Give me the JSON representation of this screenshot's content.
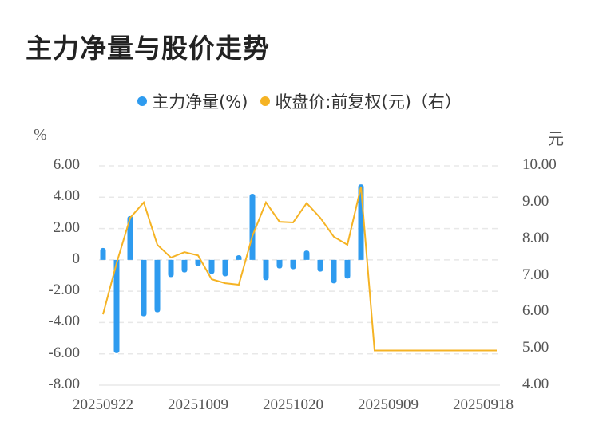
{
  "header": {
    "title": "主力净量与股价走势"
  },
  "legend": {
    "items": [
      {
        "label": "主力净量(%)",
        "color": "#2e9bef"
      },
      {
        "label": "收盘价:前复权(元)（右）",
        "color": "#f5b324"
      }
    ]
  },
  "axes": {
    "left_unit": "%",
    "right_unit": "元",
    "left_ticks": [
      "6.00",
      "4.00",
      "2.00",
      "0",
      "-2.00",
      "-4.00",
      "-6.00",
      "-8.00"
    ],
    "right_ticks": [
      "10.00",
      "9.00",
      "8.00",
      "7.00",
      "6.00",
      "5.00",
      "4.00"
    ],
    "x_ticks": [
      "20250922",
      "20251009",
      "20251020",
      "20250909",
      "20250918"
    ]
  },
  "chart_data": {
    "type": "bar+line",
    "title": "主力净量与股价走势",
    "legend_position": "top",
    "grid": true,
    "x_tick_labels": [
      "20250922",
      "20251009",
      "20251020",
      "20250909",
      "20250918"
    ],
    "x_tick_indices": [
      0,
      7,
      14,
      21,
      28
    ],
    "category_count": 30,
    "series": [
      {
        "name": "主力净量(%)",
        "type": "bar",
        "axis": "left",
        "color": "#2e9bef",
        "values": [
          0.76,
          -5.96,
          2.8,
          -3.6,
          -3.35,
          -1.1,
          -0.8,
          -0.4,
          -0.9,
          -1.05,
          0.3,
          4.22,
          -1.3,
          -0.55,
          -0.6,
          0.6,
          -0.75,
          -1.5,
          -1.2,
          4.82,
          null,
          null,
          null,
          null,
          null,
          null,
          null,
          null,
          null,
          null
        ]
      },
      {
        "name": "收盘价:前复权(元)（右）",
        "type": "line",
        "axis": "right",
        "color": "#f5b324",
        "values": [
          5.94,
          7.34,
          8.58,
          9.0,
          7.84,
          7.49,
          7.64,
          7.55,
          6.9,
          6.79,
          6.75,
          8.08,
          9.0,
          8.47,
          8.45,
          8.98,
          8.58,
          8.06,
          7.84,
          9.43,
          4.95,
          4.95,
          4.95,
          4.95,
          4.95,
          4.95,
          4.95,
          4.95,
          4.95,
          4.95
        ]
      }
    ],
    "ylabel_left": "%",
    "ylabel_right": "元",
    "ylim_left": [
      -8,
      6
    ],
    "ylim_right": [
      4,
      10
    ]
  }
}
